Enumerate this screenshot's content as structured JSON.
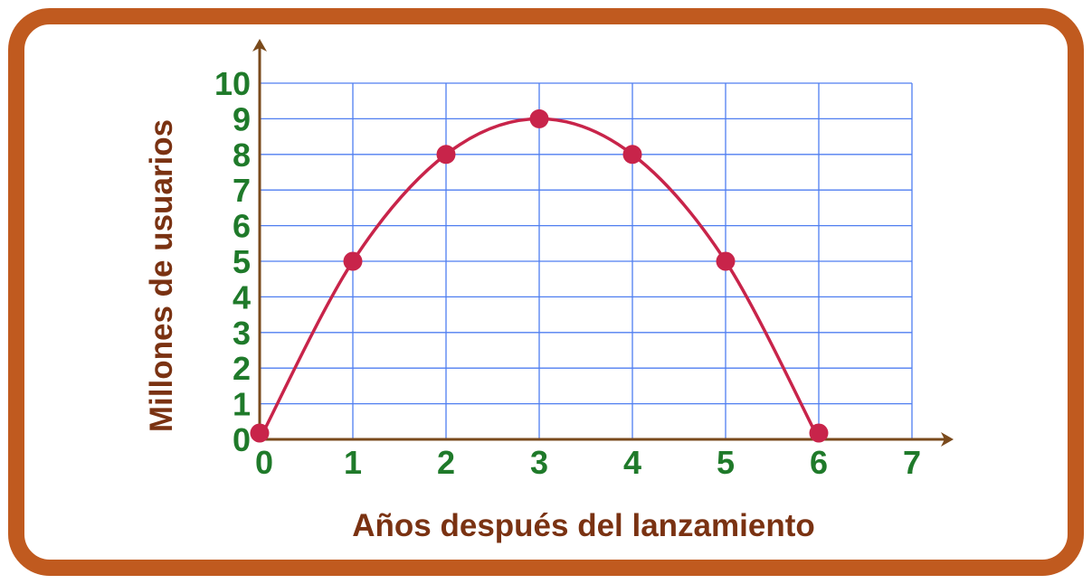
{
  "chart_data": {
    "type": "line",
    "xlabel": "Años después del lanzamiento",
    "ylabel": "Millones de usuarios",
    "xlim": [
      0,
      7
    ],
    "ylim": [
      0,
      10
    ],
    "x_ticks": [
      "0",
      "1",
      "2",
      "3",
      "4",
      "5",
      "6",
      "7"
    ],
    "y_ticks": [
      "0",
      "1",
      "2",
      "3",
      "4",
      "5",
      "6",
      "7",
      "8",
      "9",
      "10"
    ],
    "grid": true,
    "series": [
      {
        "x": [
          0,
          1,
          2,
          3,
          4,
          5,
          6
        ],
        "values": [
          0,
          5,
          8,
          9,
          8,
          5,
          0
        ]
      }
    ]
  },
  "colors": {
    "frame": "#c05a1f",
    "grid": "#4f7ef0",
    "axis": "#7a4a1c",
    "tick_labels": "#1f7a2a",
    "axis_titles": "#7a3212",
    "curve": "#c8244a",
    "points": "#c8244a"
  }
}
